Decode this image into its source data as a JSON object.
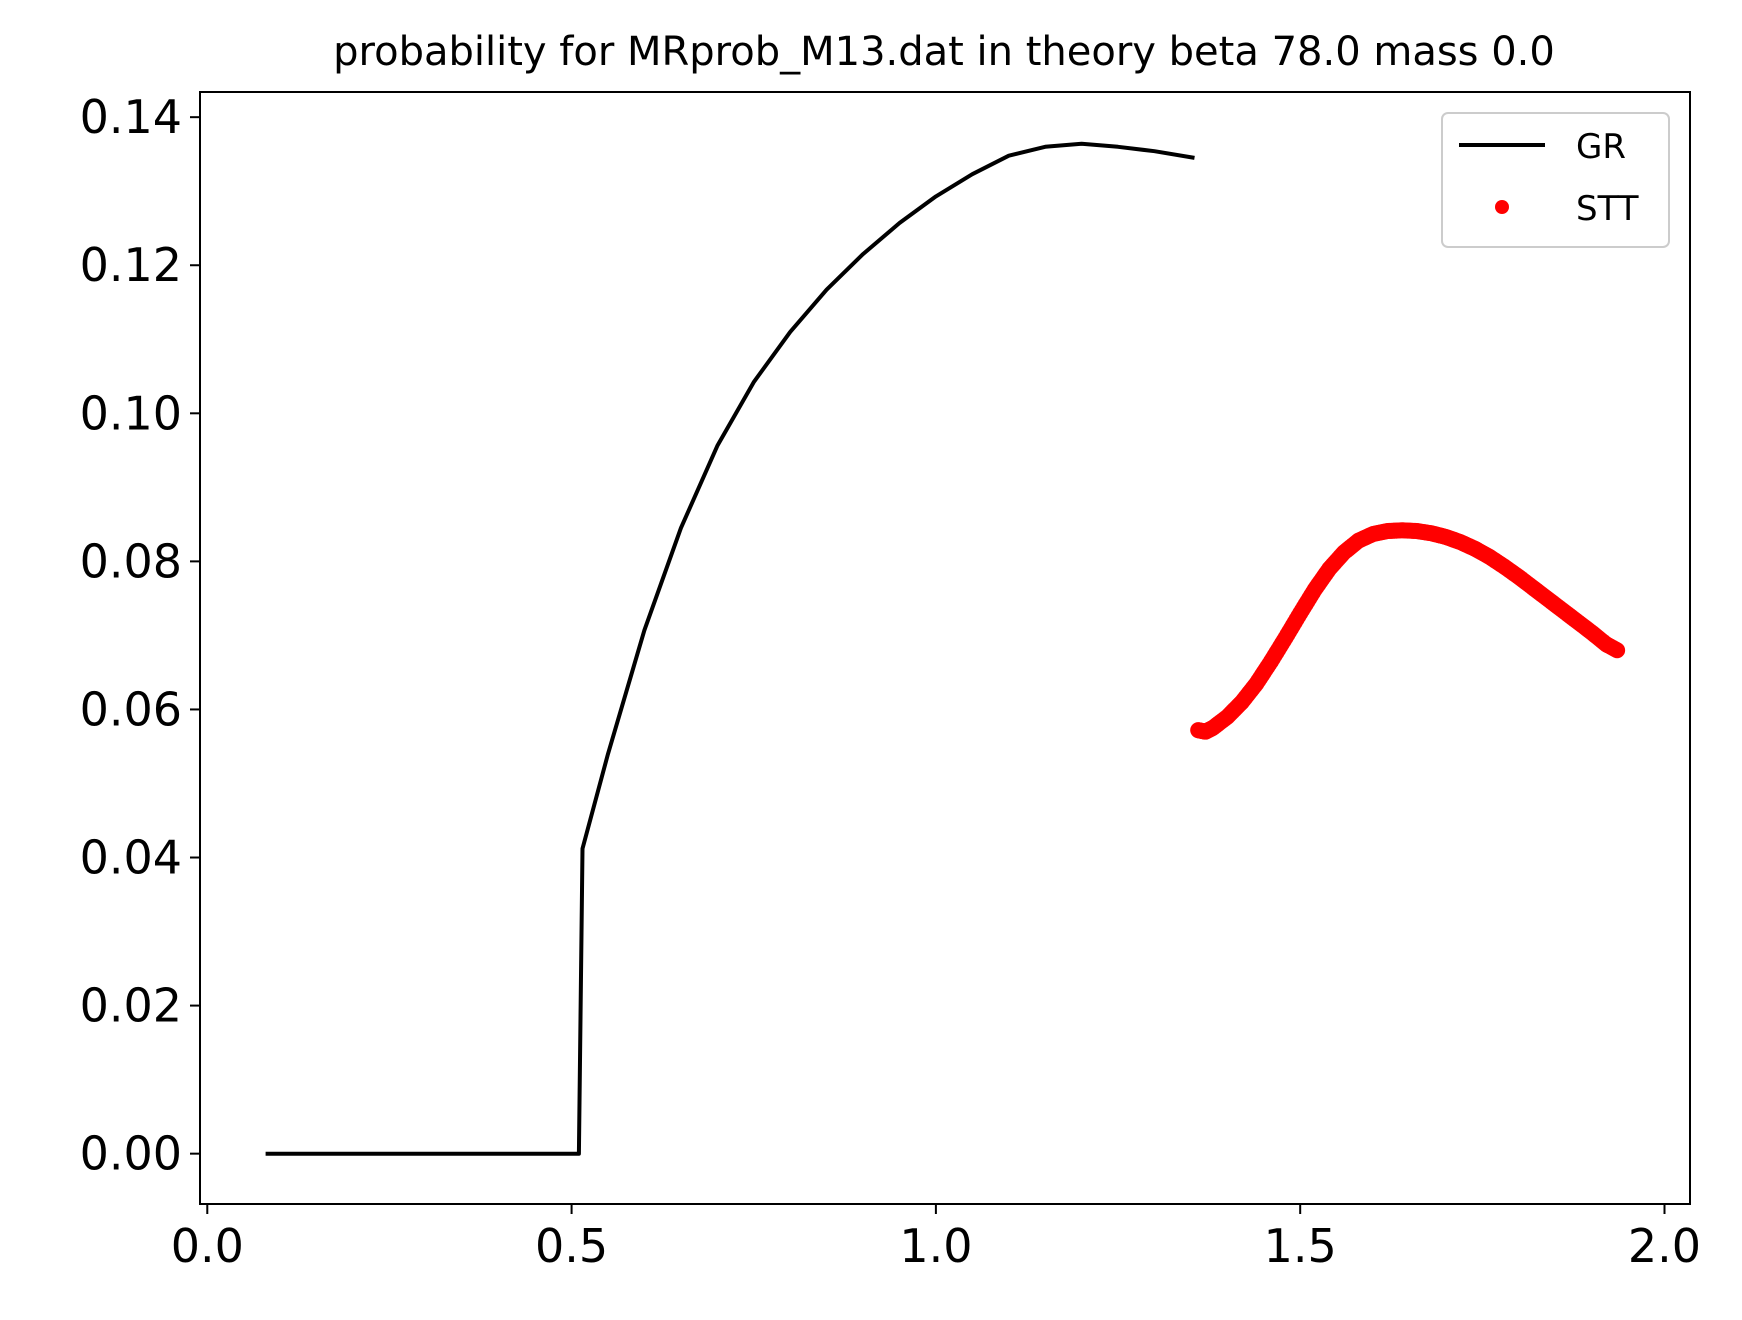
{
  "chart_data": {
    "type": "line",
    "title": "probability for MRprob_M13.dat in theory beta 78.0 mass 0.0",
    "xlabel": "",
    "ylabel": "",
    "xlim": [
      -0.01,
      2.035
    ],
    "ylim": [
      -0.0068,
      0.1434
    ],
    "xticks": [
      0.0,
      0.5,
      1.0,
      1.5,
      2.0
    ],
    "xtick_labels": [
      "0.0",
      "0.5",
      "1.0",
      "1.5",
      "2.0"
    ],
    "yticks": [
      0.0,
      0.02,
      0.04,
      0.06,
      0.08,
      0.1,
      0.12,
      0.14
    ],
    "ytick_labels": [
      "0.00",
      "0.02",
      "0.04",
      "0.06",
      "0.08",
      "0.10",
      "0.12",
      "0.14"
    ],
    "grid": false,
    "legend": {
      "placement": "upper right",
      "entries": [
        {
          "label": "GR",
          "style": "line",
          "color": "#000000"
        },
        {
          "label": "STT",
          "style": "dot",
          "color": "#ff0000"
        }
      ]
    },
    "series": [
      {
        "name": "GR",
        "style": "line",
        "color": "#000000",
        "x": [
          0.08,
          0.2,
          0.3,
          0.4,
          0.5,
          0.51,
          0.515,
          0.55,
          0.6,
          0.65,
          0.7,
          0.75,
          0.8,
          0.85,
          0.9,
          0.95,
          1.0,
          1.05,
          1.1,
          1.15,
          1.2,
          1.25,
          1.3,
          1.355
        ],
        "y": [
          0.0,
          0.0,
          0.0,
          0.0,
          0.0,
          0.0,
          0.0412,
          0.054,
          0.0707,
          0.0845,
          0.0956,
          0.1042,
          0.111,
          0.1167,
          0.1215,
          0.1257,
          0.1293,
          0.1323,
          0.1348,
          0.136,
          0.1364,
          0.136,
          0.1354,
          0.1345
        ]
      },
      {
        "name": "STT",
        "style": "dots",
        "color": "#ff0000",
        "x": [
          1.36,
          1.37,
          1.38,
          1.4,
          1.42,
          1.44,
          1.46,
          1.48,
          1.5,
          1.52,
          1.54,
          1.56,
          1.58,
          1.6,
          1.62,
          1.64,
          1.66,
          1.68,
          1.7,
          1.72,
          1.74,
          1.76,
          1.78,
          1.8,
          1.82,
          1.84,
          1.86,
          1.88,
          1.9,
          1.92,
          1.935
        ],
        "y": [
          0.0572,
          0.057,
          0.0575,
          0.059,
          0.061,
          0.0635,
          0.0665,
          0.0697,
          0.073,
          0.0762,
          0.079,
          0.0812,
          0.0828,
          0.0837,
          0.0841,
          0.0842,
          0.0841,
          0.0838,
          0.0833,
          0.0826,
          0.0817,
          0.0806,
          0.0793,
          0.0779,
          0.0764,
          0.0749,
          0.0734,
          0.0719,
          0.0704,
          0.0688,
          0.068
        ]
      }
    ]
  }
}
